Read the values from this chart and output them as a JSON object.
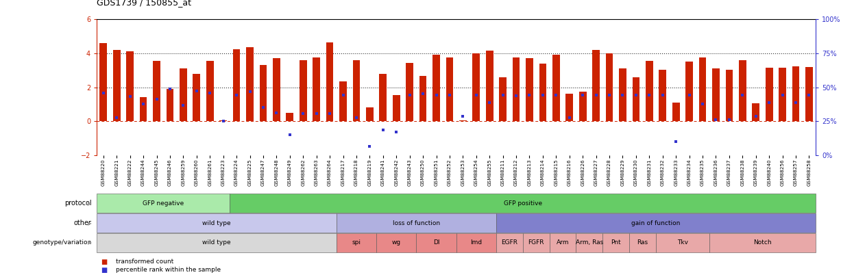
{
  "title": "GDS1739 / 150855_at",
  "sample_ids": [
    "GSM88220",
    "GSM88221",
    "GSM88222",
    "GSM88244",
    "GSM88245",
    "GSM88246",
    "GSM88259",
    "GSM88260",
    "GSM88261",
    "GSM88223",
    "GSM88224",
    "GSM88225",
    "GSM88247",
    "GSM88248",
    "GSM88249",
    "GSM88262",
    "GSM88263",
    "GSM88264",
    "GSM88217",
    "GSM88218",
    "GSM88219",
    "GSM88241",
    "GSM88242",
    "GSM88243",
    "GSM88250",
    "GSM88251",
    "GSM88252",
    "GSM88253",
    "GSM88254",
    "GSM88255",
    "GSM88211",
    "GSM88212",
    "GSM88213",
    "GSM88214",
    "GSM88215",
    "GSM88216",
    "GSM88226",
    "GSM88227",
    "GSM88228",
    "GSM88229",
    "GSM88230",
    "GSM88231",
    "GSM88232",
    "GSM88233",
    "GSM88234",
    "GSM88235",
    "GSM88236",
    "GSM88237",
    "GSM88238",
    "GSM88239",
    "GSM88240",
    "GSM88256",
    "GSM88257",
    "GSM88258"
  ],
  "bar_values": [
    4.6,
    4.2,
    4.1,
    1.4,
    3.55,
    1.9,
    3.1,
    2.8,
    3.55,
    0.05,
    4.25,
    4.35,
    3.3,
    3.7,
    0.5,
    3.6,
    3.75,
    4.65,
    2.35,
    3.6,
    0.8,
    2.8,
    1.55,
    3.45,
    2.65,
    3.9,
    3.75,
    0.05,
    4.0,
    4.15,
    2.6,
    3.75,
    3.7,
    3.4,
    3.9,
    1.6,
    1.75,
    4.2,
    4.0,
    3.1,
    2.6,
    3.55,
    3.05,
    1.1,
    3.5,
    3.75,
    3.1,
    3.05,
    3.6,
    1.05,
    3.15,
    3.15,
    3.25,
    3.2
  ],
  "blue_dot_values": [
    1.65,
    0.2,
    1.45,
    1.0,
    1.3,
    1.9,
    0.95,
    1.8,
    1.65,
    0.0,
    1.55,
    1.75,
    0.8,
    0.5,
    -0.8,
    0.45,
    0.45,
    0.45,
    1.55,
    0.2,
    -1.5,
    -0.5,
    -0.65,
    1.55,
    1.6,
    1.55,
    1.55,
    0.3,
    1.55,
    1.1,
    1.55,
    1.5,
    1.55,
    1.55,
    1.55,
    0.2,
    1.55,
    1.55,
    1.55,
    1.55,
    1.55,
    1.55,
    1.55,
    -1.2,
    1.55,
    1.0,
    0.1,
    0.1,
    1.55,
    0.3,
    1.1,
    1.55,
    1.1,
    1.55
  ],
  "protocol_groups": [
    {
      "label": "GFP negative",
      "start": 0,
      "end": 9,
      "color": "#aaeaaa"
    },
    {
      "label": "GFP positive",
      "start": 10,
      "end": 53,
      "color": "#66cc66"
    }
  ],
  "other_groups": [
    {
      "label": "wild type",
      "start": 0,
      "end": 17,
      "color": "#c8c8ec"
    },
    {
      "label": "loss of function",
      "start": 18,
      "end": 29,
      "color": "#b0b0e0"
    },
    {
      "label": "gain of function",
      "start": 30,
      "end": 53,
      "color": "#8080cc"
    }
  ],
  "genotype_groups": [
    {
      "label": "wild type",
      "start": 0,
      "end": 17,
      "color": "#d8d8d8"
    },
    {
      "label": "spi",
      "start": 18,
      "end": 20,
      "color": "#e88888"
    },
    {
      "label": "wg",
      "start": 21,
      "end": 23,
      "color": "#e88888"
    },
    {
      "label": "Dl",
      "start": 24,
      "end": 26,
      "color": "#e88888"
    },
    {
      "label": "Imd",
      "start": 27,
      "end": 29,
      "color": "#e88888"
    },
    {
      "label": "EGFR",
      "start": 30,
      "end": 31,
      "color": "#e8a8a8"
    },
    {
      "label": "FGFR",
      "start": 32,
      "end": 33,
      "color": "#e8a8a8"
    },
    {
      "label": "Arm",
      "start": 34,
      "end": 35,
      "color": "#e8a8a8"
    },
    {
      "label": "Arm, Ras",
      "start": 36,
      "end": 37,
      "color": "#e8a8a8"
    },
    {
      "label": "Pnt",
      "start": 38,
      "end": 39,
      "color": "#e8a8a8"
    },
    {
      "label": "Ras",
      "start": 40,
      "end": 41,
      "color": "#e8a8a8"
    },
    {
      "label": "Tkv",
      "start": 42,
      "end": 45,
      "color": "#e8a8a8"
    },
    {
      "label": "Notch",
      "start": 46,
      "end": 53,
      "color": "#e8a8a8"
    }
  ],
  "ylim": [
    -2,
    6
  ],
  "yticks_left": [
    -2,
    0,
    2,
    4,
    6
  ],
  "yticks_right": [
    0,
    25,
    50,
    75,
    100
  ],
  "bar_color": "#cc2200",
  "dot_color": "#3333cc",
  "hline0_color": "#cc2200",
  "hline_dotted_color": "#333333",
  "right_axis_color": "#3333cc"
}
